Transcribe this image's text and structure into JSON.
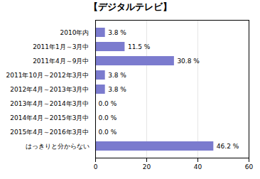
{
  "chart_data": {
    "type": "bar",
    "orientation": "horizontal",
    "title": "【デジタルテレビ】",
    "categories": [
      "2010年内",
      "2011年1月～3月中",
      "2011年4月～9月中",
      "2011年10月～2012年3月中",
      "2012年4月～2013年3月中",
      "2013年4月～2014年3月中",
      "2014年4月～2015年3月中",
      "2015年4月～2016年3月中",
      "はっきりと分からない"
    ],
    "values": [
      3.8,
      11.5,
      30.8,
      3.8,
      3.8,
      0.0,
      0.0,
      0.0,
      46.2
    ],
    "value_labels": [
      "3.8 %",
      "11.5 %",
      "30.8 %",
      "3.8 %",
      "3.8 %",
      "0.0 %",
      "0.0 %",
      "0.0 %",
      "46.2 %"
    ],
    "data_labels": true,
    "color": "#7B7BCE",
    "xlim": [
      0,
      60
    ],
    "xticks": [
      0,
      20,
      40,
      60
    ],
    "grid": true
  }
}
